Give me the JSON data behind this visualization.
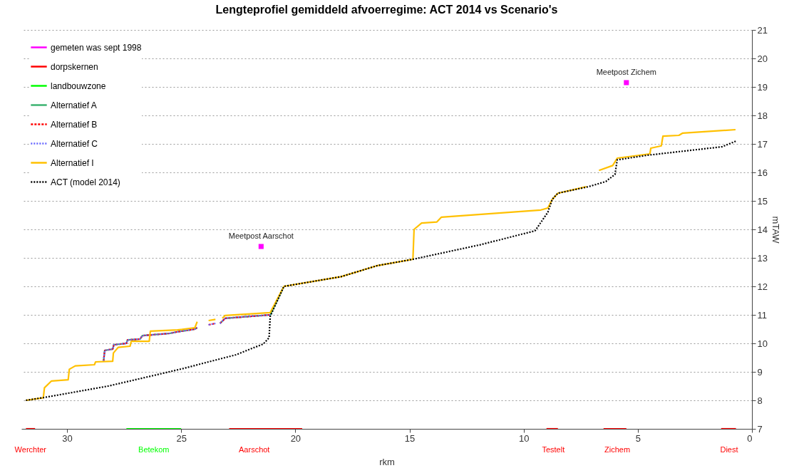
{
  "chart_data": {
    "type": "line",
    "title": "Lengteprofiel gemiddeld afvoerregime: ACT 2014 vs Scenario's",
    "xlabel": "rkm",
    "ylabel": "mTAW",
    "xlim": [
      32,
      0
    ],
    "xticks": [
      30,
      25,
      20,
      15,
      10,
      5,
      0
    ],
    "ylim": [
      7,
      21
    ],
    "yticks": [
      7,
      8,
      9,
      10,
      11,
      12,
      13,
      14,
      15,
      16,
      17,
      18,
      19,
      20,
      21
    ],
    "grid": "y",
    "legend": "top left",
    "marker": "none",
    "series": [
      {
        "name": "gemeten was sept 1998",
        "type": "scatter",
        "marker": "square",
        "color": "#ff00ff",
        "x": [
          21.5,
          5.5
        ],
        "values": [
          13.4,
          19.15
        ]
      },
      {
        "name": "dorpskernen",
        "color": "#ff0000",
        "line_style": "solid",
        "x": [
          31.8,
          31.4,
          null,
          22.9,
          19.7,
          null,
          9.0,
          8.5,
          null,
          6.5,
          5.5,
          null,
          1.35,
          0.7
        ],
        "values": [
          7,
          7,
          null,
          7,
          7,
          null,
          7,
          7,
          null,
          7,
          7,
          null,
          7,
          7
        ]
      },
      {
        "name": "landbouwzone",
        "color": "#00ff00",
        "line_style": "solid",
        "x": [
          27.4,
          25.0
        ],
        "values": [
          7,
          7
        ]
      },
      {
        "name": "Alternatief A",
        "color": "#3cb371",
        "line_style": "solid",
        "x": [
          28.4,
          28.35,
          28.0,
          27.95,
          27.4,
          27.35,
          26.8,
          26.7,
          25.5,
          25.2,
          24.4,
          24.3,
          null,
          23.3,
          23.07,
          21.1,
          20.5
        ],
        "values": [
          9.37,
          9.75,
          9.8,
          9.95,
          10.0,
          10.12,
          10.15,
          10.27,
          10.35,
          10.4,
          10.5,
          10.55,
          null,
          10.7,
          10.88,
          11.0,
          12.0
        ]
      },
      {
        "name": "Alternatief B",
        "color": "#ff0000",
        "line_style": "dashed",
        "x": [
          28.4,
          28.35,
          28.0,
          27.95,
          27.4,
          27.35,
          26.8,
          26.7,
          25.5,
          25.2,
          24.4,
          24.3,
          null,
          23.8,
          23.5,
          null,
          23.3,
          23.07,
          21.1
        ],
        "values": [
          9.37,
          9.75,
          9.8,
          9.95,
          10.0,
          10.12,
          10.15,
          10.27,
          10.35,
          10.4,
          10.5,
          10.55,
          null,
          10.65,
          10.7,
          null,
          10.7,
          10.88,
          11.0
        ]
      },
      {
        "name": "Alternatief C",
        "color": "#6666ff",
        "line_style": "dotted",
        "x": [
          28.4,
          28.35,
          28.0,
          27.95,
          27.4,
          27.35,
          26.8,
          26.7,
          25.5,
          25.2,
          24.4,
          24.3,
          null,
          23.8,
          23.5,
          null,
          23.3,
          23.07,
          21.1
        ],
        "values": [
          9.37,
          9.75,
          9.8,
          9.95,
          10.0,
          10.12,
          10.15,
          10.27,
          10.35,
          10.4,
          10.5,
          10.55,
          null,
          10.65,
          10.7,
          null,
          10.7,
          10.88,
          11.0
        ]
      },
      {
        "name": "Alternatief I",
        "color": "#ffc000",
        "line_style": "solid",
        "x": [
          31.8,
          31.04,
          30.99,
          30.68,
          29.95,
          29.9,
          29.64,
          28.8,
          28.75,
          28.0,
          27.97,
          27.76,
          27.24,
          27.19,
          26.4,
          26.35,
          25.16,
          24.4,
          24.3,
          null,
          23.8,
          23.5,
          null,
          23.2,
          23.07,
          21.1,
          20.5,
          18.0,
          16.4,
          14.85,
          14.8,
          14.47,
          13.8,
          13.6,
          9.25,
          8.94,
          8.75,
          8.5,
          7.25,
          null,
          6.7,
          6.1,
          5.9,
          4.47,
          4.43,
          3.97,
          3.9,
          3.2,
          3.03,
          0.72
        ],
        "values": [
          8.0,
          8.09,
          8.44,
          8.68,
          8.72,
          9.09,
          9.21,
          9.25,
          9.35,
          9.37,
          9.66,
          9.86,
          9.9,
          10.07,
          10.07,
          10.43,
          10.47,
          10.55,
          10.76,
          null,
          10.8,
          10.84,
          null,
          10.88,
          10.98,
          11.08,
          12.0,
          12.34,
          12.73,
          12.95,
          14.0,
          14.22,
          14.26,
          14.43,
          14.68,
          14.75,
          15.05,
          15.27,
          15.5,
          null,
          16.07,
          16.24,
          16.5,
          16.65,
          16.85,
          16.93,
          17.27,
          17.3,
          17.38,
          17.5
        ]
      },
      {
        "name": "ACT (model 2014)",
        "color": "#000000",
        "line_style": "dotted",
        "x": [
          31.8,
          31.0,
          28.2,
          25.9,
          24.9,
          22.6,
          21.4,
          21.15,
          21.1,
          20.5,
          18.0,
          16.4,
          14.85,
          11.9,
          9.5,
          8.94,
          8.75,
          8.5,
          7.15,
          6.4,
          6.0,
          5.9,
          4.6,
          1.3,
          0.7
        ],
        "values": [
          8.0,
          8.1,
          8.5,
          8.93,
          9.12,
          9.6,
          9.98,
          10.2,
          10.95,
          12.0,
          12.34,
          12.73,
          12.95,
          13.46,
          13.95,
          14.6,
          15.05,
          15.27,
          15.5,
          15.68,
          15.93,
          16.44,
          16.6,
          16.9,
          17.1
        ]
      }
    ],
    "annotations": [
      {
        "text": "Meetpost  Aarschot",
        "x": 21.5,
        "y": 13.4
      },
      {
        "text": "Meetpost  Zichem",
        "x": 5.5,
        "y": 19.15
      },
      {
        "text": "Werchter",
        "x": 31.6,
        "y": 7
      },
      {
        "text": "Betekom",
        "x": 26.2,
        "y": 7
      },
      {
        "text": "Aarschot",
        "x": 21.8,
        "y": 7
      },
      {
        "text": "Testelt",
        "x": 8.7,
        "y": 7
      },
      {
        "text": "Zichem",
        "x": 5.9,
        "y": 7
      },
      {
        "text": "Diest",
        "x": 1.0,
        "y": 7
      }
    ]
  }
}
